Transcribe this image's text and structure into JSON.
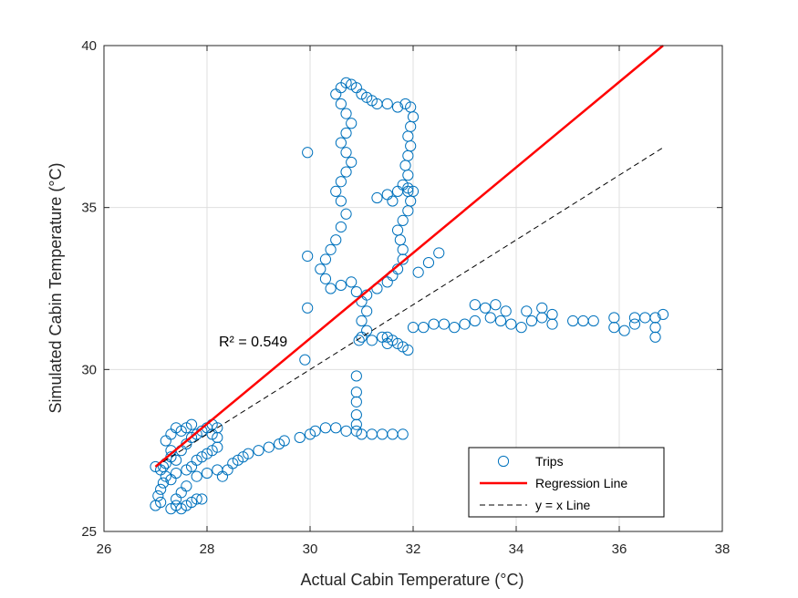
{
  "chart_data": {
    "type": "scatter",
    "xlabel": "Actual Cabin Temperature (°C)",
    "ylabel": "Simulated Cabin Temperature (°C)",
    "xlim": [
      26,
      38
    ],
    "ylim": [
      25,
      40
    ],
    "xticks": [
      26,
      28,
      30,
      32,
      34,
      36,
      38
    ],
    "yticks": [
      25,
      30,
      35,
      40
    ],
    "grid": true,
    "legend_position": "bottom-right",
    "annotation": "R² = 0.549",
    "colors": {
      "trips": "#0072BD",
      "regression": "#FF0000",
      "identity": "#000000"
    },
    "series": [
      {
        "name": "Trips",
        "kind": "scatter",
        "marker": "open-circle",
        "points": [
          [
            27.0,
            25.8
          ],
          [
            27.1,
            25.9
          ],
          [
            27.05,
            26.1
          ],
          [
            27.1,
            26.3
          ],
          [
            27.15,
            26.5
          ],
          [
            27.2,
            26.7
          ],
          [
            27.1,
            26.9
          ],
          [
            27.2,
            27.1
          ],
          [
            27.3,
            27.3
          ],
          [
            27.15,
            27.0
          ],
          [
            27.3,
            25.7
          ],
          [
            27.4,
            25.8
          ],
          [
            27.5,
            25.7
          ],
          [
            27.6,
            25.8
          ],
          [
            27.7,
            25.9
          ],
          [
            27.8,
            26.0
          ],
          [
            27.9,
            26.0
          ],
          [
            27.4,
            26.0
          ],
          [
            27.5,
            26.2
          ],
          [
            27.6,
            26.4
          ],
          [
            27.3,
            26.6
          ],
          [
            27.4,
            26.8
          ],
          [
            27.6,
            26.9
          ],
          [
            27.7,
            27.0
          ],
          [
            27.8,
            27.2
          ],
          [
            27.9,
            27.3
          ],
          [
            28.0,
            27.4
          ],
          [
            28.1,
            27.5
          ],
          [
            28.2,
            27.6
          ],
          [
            27.5,
            27.5
          ],
          [
            27.6,
            27.7
          ],
          [
            27.7,
            27.9
          ],
          [
            27.8,
            28.0
          ],
          [
            27.9,
            28.1
          ],
          [
            28.0,
            28.2
          ],
          [
            28.1,
            28.3
          ],
          [
            28.2,
            28.2
          ],
          [
            28.1,
            28.0
          ],
          [
            28.2,
            27.9
          ],
          [
            27.3,
            28.0
          ],
          [
            27.4,
            28.2
          ],
          [
            27.5,
            28.1
          ],
          [
            27.6,
            28.2
          ],
          [
            27.7,
            28.3
          ],
          [
            27.2,
            27.8
          ],
          [
            27.3,
            27.5
          ],
          [
            27.0,
            27.0
          ],
          [
            27.4,
            27.2
          ],
          [
            27.8,
            26.7
          ],
          [
            28.0,
            26.8
          ],
          [
            28.2,
            26.9
          ],
          [
            28.3,
            26.7
          ],
          [
            28.4,
            26.9
          ],
          [
            28.5,
            27.1
          ],
          [
            28.6,
            27.2
          ],
          [
            28.7,
            27.3
          ],
          [
            28.8,
            27.4
          ],
          [
            29.0,
            27.5
          ],
          [
            29.2,
            27.6
          ],
          [
            29.4,
            27.7
          ],
          [
            29.5,
            27.8
          ],
          [
            29.8,
            27.9
          ],
          [
            30.0,
            28.0
          ],
          [
            30.1,
            28.1
          ],
          [
            30.3,
            28.2
          ],
          [
            30.5,
            28.2
          ],
          [
            30.7,
            28.1
          ],
          [
            30.9,
            28.1
          ],
          [
            31.0,
            28.0
          ],
          [
            31.2,
            28.0
          ],
          [
            31.4,
            28.0
          ],
          [
            31.6,
            28.0
          ],
          [
            31.8,
            28.0
          ],
          [
            30.9,
            28.3
          ],
          [
            30.9,
            28.6
          ],
          [
            30.9,
            29.0
          ],
          [
            30.9,
            29.3
          ],
          [
            30.9,
            29.8
          ],
          [
            30.95,
            30.9
          ],
          [
            29.9,
            30.3
          ],
          [
            29.95,
            31.9
          ],
          [
            29.95,
            33.5
          ],
          [
            29.95,
            36.7
          ],
          [
            31.0,
            31.0
          ],
          [
            31.1,
            31.2
          ],
          [
            31.0,
            31.5
          ],
          [
            31.1,
            31.8
          ],
          [
            31.0,
            32.1
          ],
          [
            30.9,
            32.4
          ],
          [
            30.8,
            32.7
          ],
          [
            30.6,
            32.6
          ],
          [
            30.4,
            32.5
          ],
          [
            30.3,
            32.8
          ],
          [
            30.2,
            33.1
          ],
          [
            30.3,
            33.4
          ],
          [
            30.4,
            33.7
          ],
          [
            30.5,
            34.0
          ],
          [
            30.6,
            34.4
          ],
          [
            30.7,
            34.8
          ],
          [
            30.6,
            35.2
          ],
          [
            30.5,
            35.5
          ],
          [
            30.6,
            35.8
          ],
          [
            30.7,
            36.1
          ],
          [
            30.8,
            36.4
          ],
          [
            30.7,
            36.7
          ],
          [
            30.6,
            37.0
          ],
          [
            30.7,
            37.3
          ],
          [
            30.8,
            37.6
          ],
          [
            30.7,
            37.9
          ],
          [
            30.6,
            38.2
          ],
          [
            30.5,
            38.5
          ],
          [
            30.6,
            38.7
          ],
          [
            30.7,
            38.85
          ],
          [
            30.8,
            38.8
          ],
          [
            30.9,
            38.7
          ],
          [
            31.0,
            38.5
          ],
          [
            31.1,
            38.4
          ],
          [
            31.2,
            38.3
          ],
          [
            31.3,
            38.2
          ],
          [
            31.5,
            38.2
          ],
          [
            31.7,
            38.1
          ],
          [
            31.85,
            38.2
          ],
          [
            31.95,
            38.1
          ],
          [
            32.0,
            37.8
          ],
          [
            31.95,
            37.5
          ],
          [
            31.9,
            37.2
          ],
          [
            31.95,
            36.9
          ],
          [
            31.9,
            36.6
          ],
          [
            31.85,
            36.3
          ],
          [
            31.9,
            36.0
          ],
          [
            31.8,
            35.7
          ],
          [
            31.9,
            35.5
          ],
          [
            31.95,
            35.2
          ],
          [
            31.9,
            34.9
          ],
          [
            31.8,
            34.6
          ],
          [
            31.7,
            34.3
          ],
          [
            31.75,
            34.0
          ],
          [
            31.8,
            33.7
          ],
          [
            31.8,
            33.4
          ],
          [
            31.7,
            33.1
          ],
          [
            31.6,
            32.9
          ],
          [
            31.5,
            32.7
          ],
          [
            31.3,
            32.5
          ],
          [
            31.1,
            32.3
          ],
          [
            31.3,
            35.3
          ],
          [
            31.5,
            35.4
          ],
          [
            31.7,
            35.5
          ],
          [
            31.9,
            35.6
          ],
          [
            32.0,
            35.5
          ],
          [
            31.6,
            35.2
          ],
          [
            31.5,
            31.0
          ],
          [
            31.6,
            30.9
          ],
          [
            31.7,
            30.8
          ],
          [
            31.8,
            30.7
          ],
          [
            31.9,
            30.6
          ],
          [
            31.5,
            30.8
          ],
          [
            31.4,
            31.0
          ],
          [
            31.2,
            30.9
          ],
          [
            32.0,
            31.3
          ],
          [
            32.2,
            31.3
          ],
          [
            32.4,
            31.4
          ],
          [
            32.6,
            31.4
          ],
          [
            32.8,
            31.3
          ],
          [
            33.0,
            31.4
          ],
          [
            33.2,
            31.5
          ],
          [
            33.2,
            32.0
          ],
          [
            33.4,
            31.9
          ],
          [
            33.6,
            32.0
          ],
          [
            33.8,
            31.8
          ],
          [
            33.5,
            31.6
          ],
          [
            33.7,
            31.5
          ],
          [
            33.9,
            31.4
          ],
          [
            34.1,
            31.3
          ],
          [
            34.3,
            31.5
          ],
          [
            34.5,
            31.6
          ],
          [
            34.7,
            31.7
          ],
          [
            34.2,
            31.8
          ],
          [
            34.5,
            31.9
          ],
          [
            34.7,
            31.4
          ],
          [
            35.1,
            31.5
          ],
          [
            35.3,
            31.5
          ],
          [
            35.5,
            31.5
          ],
          [
            35.9,
            31.6
          ],
          [
            35.9,
            31.3
          ],
          [
            36.1,
            31.2
          ],
          [
            36.3,
            31.6
          ],
          [
            36.3,
            31.4
          ],
          [
            36.5,
            31.6
          ],
          [
            36.7,
            31.6
          ],
          [
            36.7,
            31.0
          ],
          [
            36.7,
            31.3
          ],
          [
            36.85,
            31.7
          ],
          [
            32.5,
            33.6
          ],
          [
            32.3,
            33.3
          ],
          [
            32.1,
            33.0
          ]
        ]
      },
      {
        "name": "Regression Line",
        "kind": "line",
        "style": "solid",
        "points": [
          [
            27.0,
            27.0
          ],
          [
            36.85,
            40.0
          ]
        ]
      },
      {
        "name": "y = x Line",
        "kind": "line",
        "style": "dashed",
        "points": [
          [
            27.0,
            27.0
          ],
          [
            36.85,
            36.85
          ]
        ]
      }
    ]
  }
}
